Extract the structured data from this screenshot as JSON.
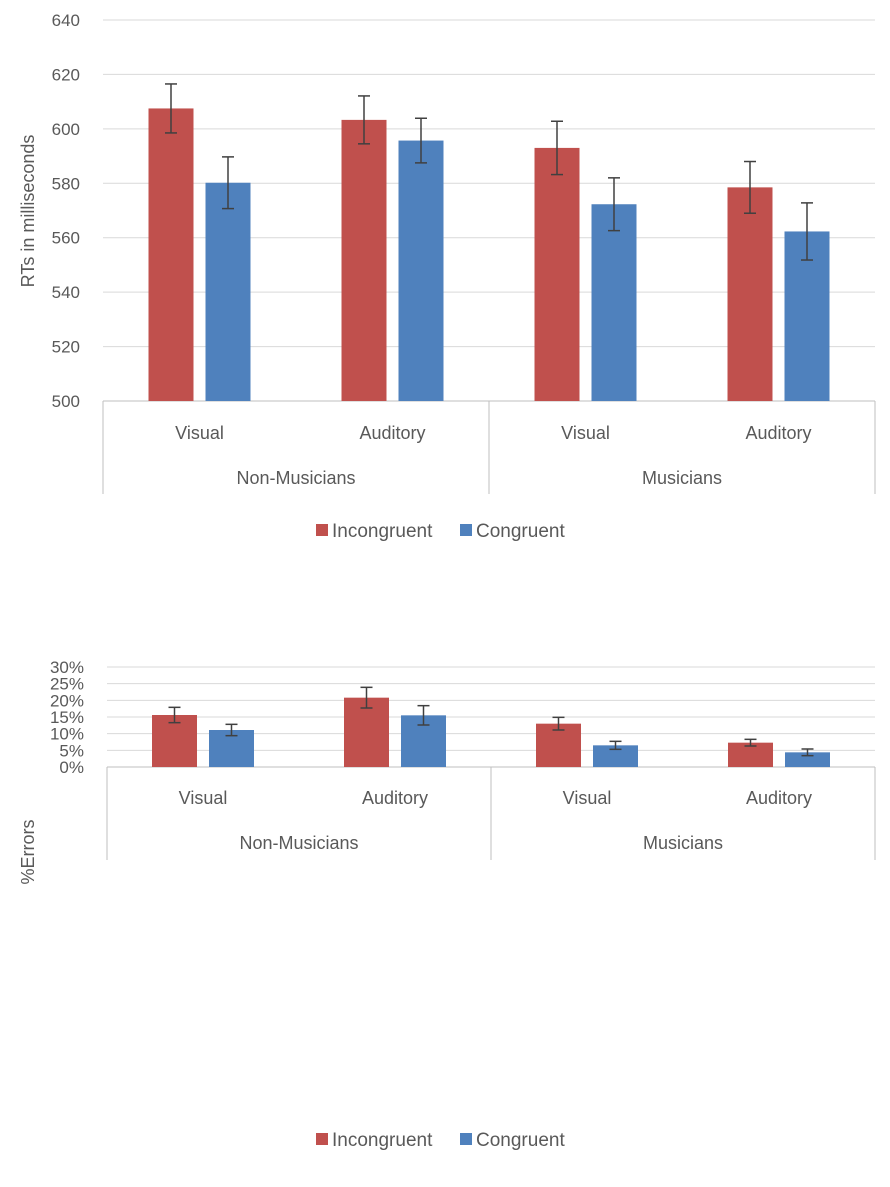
{
  "colors": {
    "incongruent": "#c0504d",
    "congruent": "#4f81bd",
    "grid": "#d9d9d9",
    "axis": "#bfbfbf",
    "text": "#595959",
    "errorbar": "#404040"
  },
  "chart_data": [
    {
      "type": "bar",
      "ylabel": "RTs in milliseconds",
      "ylim": [
        500,
        640
      ],
      "yticks": [
        500,
        520,
        540,
        560,
        580,
        600,
        620,
        640
      ],
      "ytick_labels": [
        "500",
        "520",
        "540",
        "560",
        "580",
        "600",
        "620",
        "640"
      ],
      "categories": [
        "Visual",
        "Auditory",
        "Visual",
        "Auditory"
      ],
      "groups": [
        {
          "label": "Non-Musicians",
          "categories": [
            "Visual",
            "Auditory"
          ]
        },
        {
          "label": "Musicians",
          "categories": [
            "Visual",
            "Auditory"
          ]
        }
      ],
      "series": [
        {
          "name": "Incongruent",
          "values": [
            607.5,
            603.3,
            593.0,
            578.5
          ],
          "errors": [
            9.0,
            8.8,
            9.8,
            9.5
          ]
        },
        {
          "name": "Congruent",
          "values": [
            580.2,
            595.7,
            572.3,
            562.3
          ],
          "errors": [
            9.5,
            8.2,
            9.7,
            10.5
          ]
        }
      ],
      "grid": true,
      "legend": "bottom"
    },
    {
      "type": "bar",
      "ylabel": "%Errors",
      "ylim": [
        0,
        30
      ],
      "yticks": [
        0,
        5,
        10,
        15,
        20,
        25,
        30
      ],
      "ytick_labels": [
        "0%",
        "5%",
        "10%",
        "15%",
        "20%",
        "25%",
        "30%"
      ],
      "categories": [
        "Visual",
        "Auditory",
        "Visual",
        "Auditory"
      ],
      "groups": [
        {
          "label": "Non-Musicians",
          "categories": [
            "Visual",
            "Auditory"
          ]
        },
        {
          "label": "Musicians",
          "categories": [
            "Visual",
            "Auditory"
          ]
        }
      ],
      "series": [
        {
          "name": "Incongruent",
          "values": [
            15.6,
            20.8,
            13.0,
            7.3
          ],
          "errors": [
            2.3,
            3.1,
            1.9,
            1.0
          ]
        },
        {
          "name": "Congruent",
          "values": [
            11.1,
            15.5,
            6.5,
            4.4
          ],
          "errors": [
            1.7,
            2.9,
            1.2,
            1.0
          ]
        }
      ],
      "grid": true,
      "legend": "bottom"
    }
  ]
}
